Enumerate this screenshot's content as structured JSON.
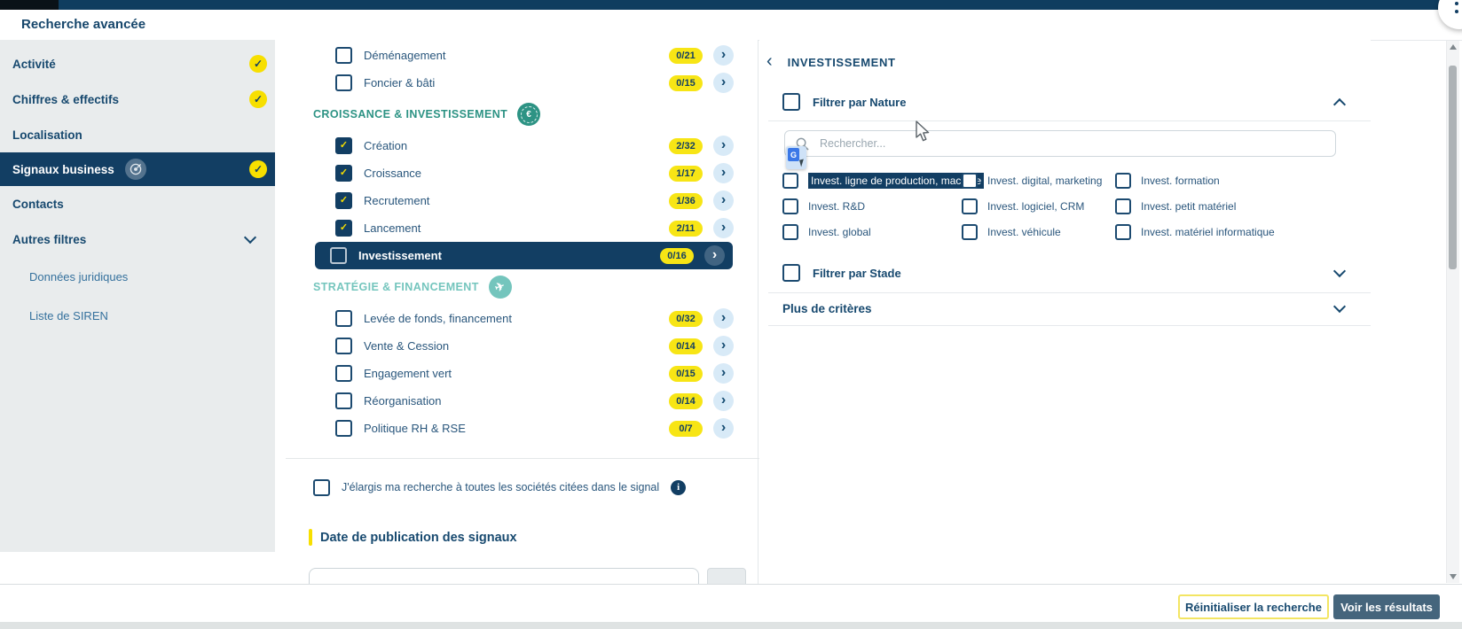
{
  "header": {
    "title": "Recherche avancée"
  },
  "sidebar": {
    "items": [
      {
        "label": "Activité",
        "checked": true
      },
      {
        "label": "Chiffres & effectifs",
        "checked": true
      },
      {
        "label": "Localisation"
      },
      {
        "label": "Signaux business",
        "checked": true,
        "selected": true,
        "icon": "target-icon"
      },
      {
        "label": "Contacts"
      },
      {
        "label": "Autres filtres",
        "chevron": true
      },
      {
        "label": "Données juridiques",
        "sub": true
      },
      {
        "label": "Liste de SIREN",
        "sub": true
      }
    ]
  },
  "signals": {
    "items": [
      {
        "type": "item",
        "label": "Déménagement",
        "count": "0/21",
        "checked": false
      },
      {
        "type": "item",
        "label": "Foncier & bâti",
        "count": "0/15",
        "checked": false
      },
      {
        "type": "section",
        "label": "CROISSANCE & INVESTISSEMENT",
        "icon": "euro-icon"
      },
      {
        "type": "item",
        "label": "Création",
        "count": "2/32",
        "checked": true
      },
      {
        "type": "item",
        "label": "Croissance",
        "count": "1/17",
        "checked": true
      },
      {
        "type": "item",
        "label": "Recrutement",
        "count": "1/36",
        "checked": true
      },
      {
        "type": "item",
        "label": "Lancement",
        "count": "2/11",
        "checked": true
      },
      {
        "type": "item",
        "label": "Investissement",
        "count": "0/16",
        "checked": false,
        "selected": true
      },
      {
        "type": "section",
        "label": "STRATÉGIE & FINANCEMENT",
        "icon": "plane-icon",
        "variant": "light"
      },
      {
        "type": "item",
        "label": "Levée de fonds, financement",
        "count": "0/32",
        "checked": false
      },
      {
        "type": "item",
        "label": "Vente & Cession",
        "count": "0/14",
        "checked": false
      },
      {
        "type": "item",
        "label": "Engagement vert",
        "count": "0/15",
        "checked": false
      },
      {
        "type": "item",
        "label": "Réorganisation",
        "count": "0/14",
        "checked": false
      },
      {
        "type": "item",
        "label": "Politique RH & RSE",
        "count": "0/7",
        "checked": false
      }
    ],
    "expand_label": "J'élargis ma recherche à toutes les sociétés citées dans le signal",
    "date_heading": "Date de publication des signaux"
  },
  "detail": {
    "title": "INVESTISSEMENT",
    "nature_label": "Filtrer par Nature",
    "search_placeholder": "Rechercher...",
    "options": [
      {
        "label": "Invest. ligne de production, machine",
        "highlight": true
      },
      {
        "label": "Invest. R&D"
      },
      {
        "label": "Invest. global"
      },
      {
        "label": "Invest. digital, marketing"
      },
      {
        "label": "Invest. logiciel, CRM"
      },
      {
        "label": "Invest. véhicule"
      },
      {
        "label": "Invest. formation"
      },
      {
        "label": "Invest. petit matériel"
      },
      {
        "label": "Invest. matériel informatique"
      }
    ],
    "stade_label": "Filtrer par Stade",
    "more_label": "Plus de critères"
  },
  "footer": {
    "reset_label": "Réinitialiser la recherche",
    "results_label": "Voir les résultats"
  },
  "colors": {
    "navy": "#123e63",
    "yellow": "#f7df00",
    "teal": "#2d9384",
    "teal_light": "#74c5bd",
    "slate_button": "#45657c"
  }
}
